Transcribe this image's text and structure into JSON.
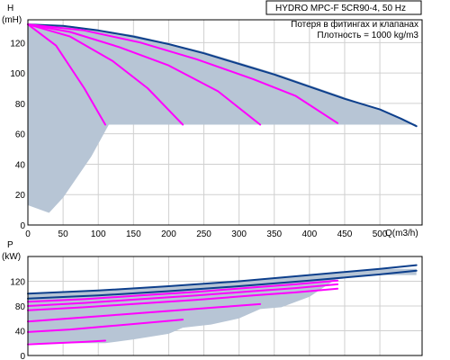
{
  "chart_data": [
    {
      "type": "line",
      "title": "HYDRO MPC-F 5CR90-4, 50 Hz",
      "subtitle_lines": [
        "Потеря в фитингах и клапанах",
        "Плотность = 1000 kg/m3"
      ],
      "ylabel_lines": [
        "H",
        "(mH)"
      ],
      "xlabel": "Q(m3/h)",
      "xlim": [
        0,
        560
      ],
      "ylim": [
        0,
        135
      ],
      "xticks": [
        0,
        50,
        100,
        150,
        200,
        250,
        300,
        350,
        400,
        450,
        500
      ],
      "yticks": [
        0,
        20,
        40,
        60,
        80,
        100,
        120
      ],
      "grid": true,
      "operating_area": {
        "name": "",
        "points": [
          [
            0,
            132
          ],
          [
            60,
            131
          ],
          [
            150,
            125
          ],
          [
            250,
            114
          ],
          [
            350,
            100
          ],
          [
            450,
            84
          ],
          [
            500,
            76
          ],
          [
            540,
            68
          ],
          [
            552,
            66
          ],
          [
            115,
            66
          ],
          [
            90,
            45
          ],
          [
            50,
            18
          ],
          [
            30,
            8
          ],
          [
            0,
            13
          ]
        ]
      },
      "series": [
        {
          "name": "",
          "color": "#0d3f8c",
          "x": [
            0,
            50,
            100,
            150,
            200,
            250,
            300,
            350,
            400,
            450,
            500,
            530,
            552
          ],
          "y": [
            132,
            131,
            128,
            124,
            119,
            113,
            106,
            99,
            91,
            83,
            76,
            70,
            65
          ]
        },
        {
          "name": "",
          "color": "#ff00ff",
          "x": [
            0,
            40,
            80,
            110
          ],
          "y": [
            132,
            118,
            90,
            66
          ]
        },
        {
          "name": "",
          "color": "#ff00ff",
          "x": [
            0,
            60,
            120,
            170,
            220
          ],
          "y": [
            132,
            124,
            108,
            90,
            66
          ]
        },
        {
          "name": "",
          "color": "#ff00ff",
          "x": [
            0,
            60,
            130,
            200,
            270,
            330
          ],
          "y": [
            132,
            127,
            117,
            105,
            88,
            66
          ]
        },
        {
          "name": "",
          "color": "#ff00ff",
          "x": [
            0,
            80,
            160,
            240,
            320,
            380,
            440
          ],
          "y": [
            132,
            128,
            120,
            109,
            96,
            85,
            67
          ]
        }
      ]
    },
    {
      "type": "line",
      "ylabel_lines": [
        "P",
        "(kW)"
      ],
      "xlim": [
        0,
        560
      ],
      "ylim": [
        0,
        160
      ],
      "yticks": [
        0,
        40,
        80,
        120
      ],
      "grid": true,
      "operating_area": {
        "name": "",
        "points": [
          [
            0,
            100
          ],
          [
            100,
            105
          ],
          [
            200,
            112
          ],
          [
            300,
            120
          ],
          [
            400,
            130
          ],
          [
            500,
            140
          ],
          [
            552,
            140
          ],
          [
            552,
            130
          ],
          [
            500,
            130
          ],
          [
            440,
            125
          ],
          [
            400,
            95
          ],
          [
            360,
            78
          ],
          [
            330,
            75
          ],
          [
            300,
            60
          ],
          [
            260,
            50
          ],
          [
            220,
            45
          ],
          [
            200,
            35
          ],
          [
            150,
            26
          ],
          [
            110,
            20
          ],
          [
            0,
            20
          ]
        ]
      },
      "series": [
        {
          "name": "",
          "color": "#0d3f8c",
          "x": [
            0,
            100,
            200,
            300,
            400,
            500,
            552
          ],
          "y": [
            100,
            105,
            112,
            120,
            130,
            140,
            146
          ]
        },
        {
          "name": "",
          "color": "#0d3f8c",
          "x": [
            0,
            100,
            200,
            300,
            400,
            500,
            552
          ],
          "y": [
            92,
            97,
            104,
            112,
            121,
            131,
            137
          ]
        },
        {
          "name": "",
          "color": "#ff00ff",
          "x": [
            0,
            40,
            80,
            110
          ],
          "y": [
            18,
            20,
            22,
            24
          ]
        },
        {
          "name": "",
          "color": "#ff00ff",
          "x": [
            0,
            60,
            120,
            170,
            220
          ],
          "y": [
            38,
            42,
            48,
            53,
            58
          ]
        },
        {
          "name": "",
          "color": "#ff00ff",
          "x": [
            0,
            60,
            130,
            200,
            270,
            330
          ],
          "y": [
            55,
            60,
            66,
            72,
            78,
            83
          ]
        },
        {
          "name": "",
          "color": "#ff00ff",
          "x": [
            0,
            80,
            160,
            240,
            320,
            380,
            440
          ],
          "y": [
            73,
            78,
            84,
            90,
            97,
            102,
            108
          ]
        },
        {
          "name": "",
          "color": "#ff00ff",
          "x": [
            0,
            80,
            160,
            240,
            320,
            380,
            440
          ],
          "y": [
            80,
            85,
            91,
            97,
            104,
            109,
            115
          ]
        },
        {
          "name": "",
          "color": "#ff00ff",
          "x": [
            0,
            80,
            160,
            240,
            320,
            380,
            440
          ],
          "y": [
            87,
            91,
            97,
            103,
            110,
            115,
            121
          ]
        }
      ]
    }
  ],
  "colors": {
    "area_fill": "#b7c5d5",
    "grid": "#d0d0d0",
    "frame": "#000000"
  }
}
